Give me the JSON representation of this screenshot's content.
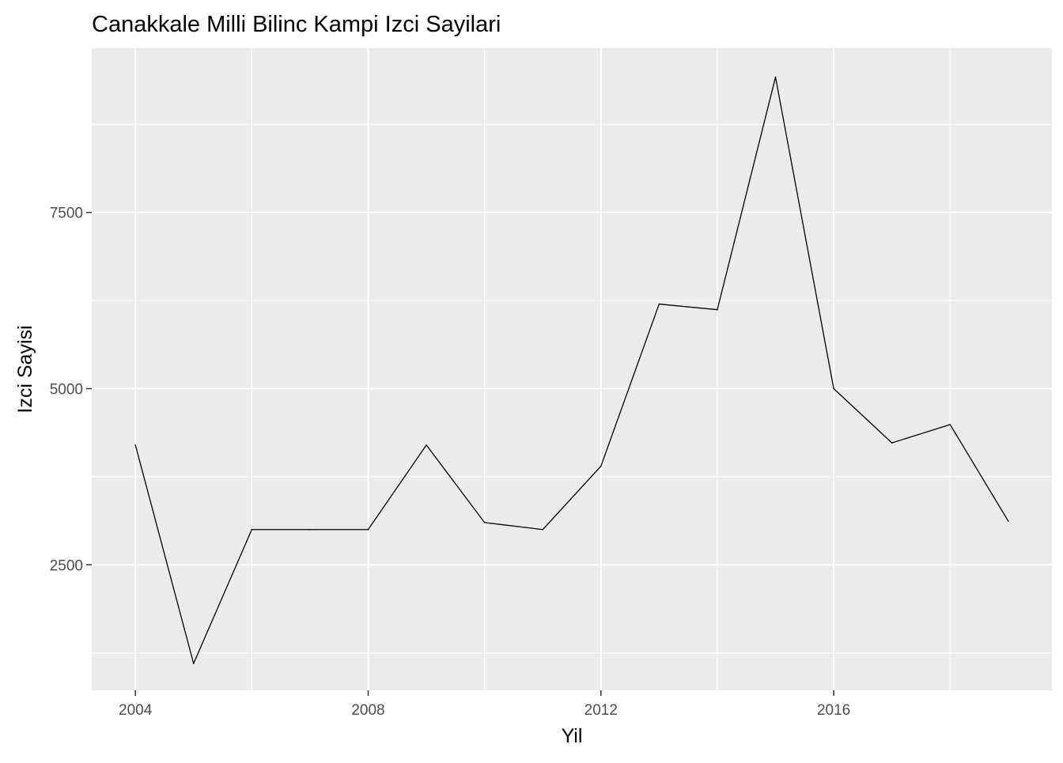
{
  "chart_data": {
    "type": "line",
    "title": "Canakkale Milli Bilinc Kampi Izci Sayilari",
    "xlabel": "Yil",
    "ylabel": "Izci Sayisi",
    "x": [
      2004,
      2005,
      2006,
      2007,
      2008,
      2009,
      2010,
      2011,
      2012,
      2013,
      2014,
      2015,
      2016,
      2017,
      2018,
      2019
    ],
    "series": [
      {
        "values": [
          4200,
          1100,
          3000,
          3000,
          3000,
          4200,
          3100,
          3000,
          3900,
          6200,
          6120,
          9420,
          5000,
          4230,
          4490,
          3120
        ]
      }
    ],
    "xlim": [
      2003.25,
      2019.75
    ],
    "ylim": [
      720,
      9830
    ],
    "x_ticks": [
      2004,
      2008,
      2012,
      2016
    ],
    "x_tick_labels": [
      "2004",
      "2008",
      "2012",
      "2016"
    ],
    "y_ticks": [
      2500,
      5000,
      7500
    ],
    "y_tick_labels": [
      "2500",
      "5000",
      "7500"
    ],
    "grid": true,
    "legend": "none",
    "colors": {
      "panel_background": "#ebebeb",
      "grid_major": "#ffffff",
      "grid_minor": "#ffffff",
      "line": "#000000",
      "tick_text": "#4d4d4d",
      "tick_mark": "#333333"
    }
  }
}
